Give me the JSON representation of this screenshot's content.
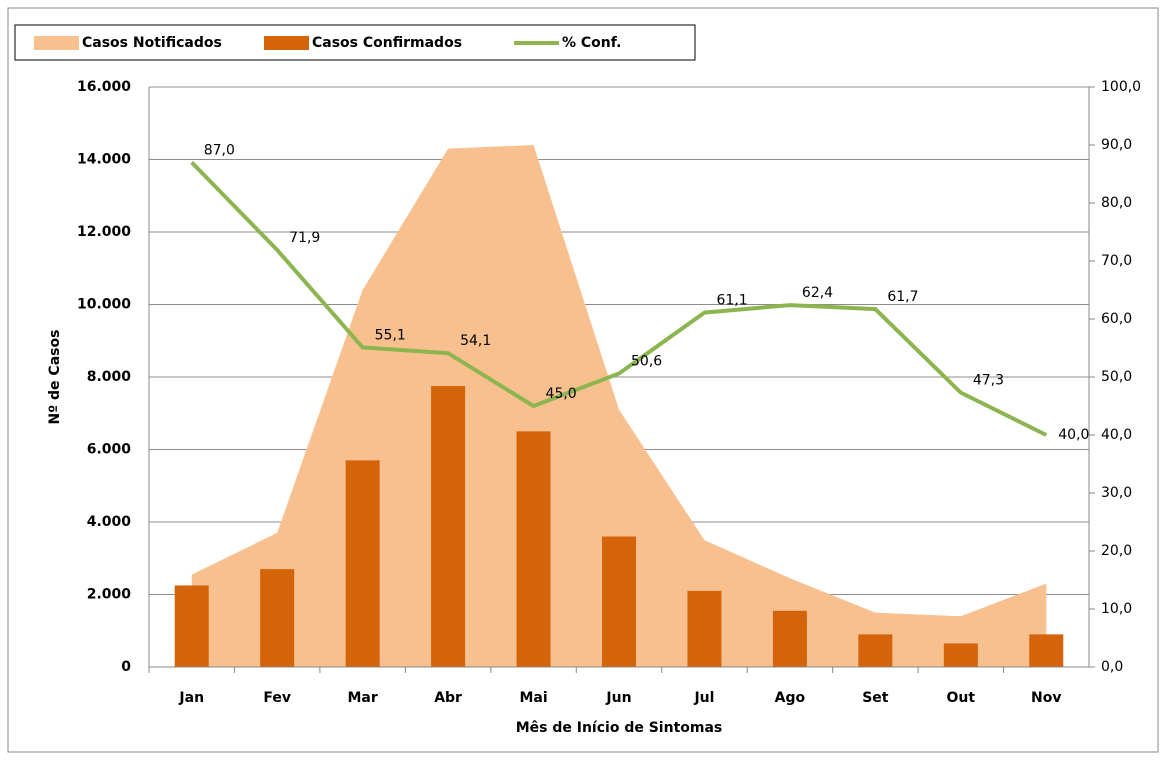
{
  "chart_data": {
    "type": "combo",
    "x_label": "Mês de Início de Sintomas",
    "y_label": "Nº de Casos",
    "categories": [
      "Jan",
      "Fev",
      "Mar",
      "Abr",
      "Mai",
      "Jun",
      "Jul",
      "Ago",
      "Set",
      "Out",
      "Nov"
    ],
    "series": [
      {
        "name": "Casos Notificados",
        "kind": "area",
        "color": "#f9c08f",
        "values": [
          2550,
          3700,
          10400,
          14300,
          14400,
          7100,
          3500,
          2450,
          1500,
          1400,
          2300
        ]
      },
      {
        "name": "Casos Confirmados",
        "kind": "bar",
        "color": "#d4640a",
        "values": [
          2250,
          2700,
          5700,
          7750,
          6500,
          3600,
          2100,
          1550,
          900,
          650,
          900
        ]
      },
      {
        "name": "% Conf.",
        "kind": "line",
        "axis": "y2",
        "color": "#8db54f",
        "values": [
          87.0,
          71.9,
          55.1,
          54.1,
          45.0,
          50.6,
          61.1,
          62.4,
          61.7,
          47.3,
          40.0
        ],
        "value_labels": [
          "87,0",
          "71,9",
          "55,1",
          "54,1",
          "45,0",
          "50,6",
          "61,1",
          "62,4",
          "61,7",
          "47,3",
          "40,0"
        ]
      }
    ],
    "ylim": [
      0,
      16000
    ],
    "yticks": [
      0,
      {
        "value": 2000,
        "label": "2.000"
      },
      {
        "value": 4000,
        "label": "4.000"
      },
      {
        "value": 6000,
        "label": "6.000"
      },
      {
        "value": 8000,
        "label": "8.000"
      },
      {
        "value": 10000,
        "label": "10.000"
      },
      {
        "value": 12000,
        "label": "12.000"
      },
      {
        "value": 14000,
        "label": "14.000"
      },
      {
        "value": 16000,
        "label": "16.000"
      }
    ],
    "y2lim": [
      0,
      100
    ],
    "y2ticks": [
      {
        "value": 0,
        "label": "0,0"
      },
      {
        "value": 10,
        "label": "10,0"
      },
      {
        "value": 20,
        "label": "20,0"
      },
      {
        "value": 30,
        "label": "30,0"
      },
      {
        "value": 40,
        "label": "40,0"
      },
      {
        "value": 50,
        "label": "50,0"
      },
      {
        "value": 60,
        "label": "60,0"
      },
      {
        "value": 70,
        "label": "70,0"
      },
      {
        "value": 80,
        "label": "80,0"
      },
      {
        "value": 90,
        "label": "90,0"
      },
      {
        "value": 100,
        "label": "100,0"
      }
    ],
    "grid": true,
    "legend": "top-left"
  }
}
